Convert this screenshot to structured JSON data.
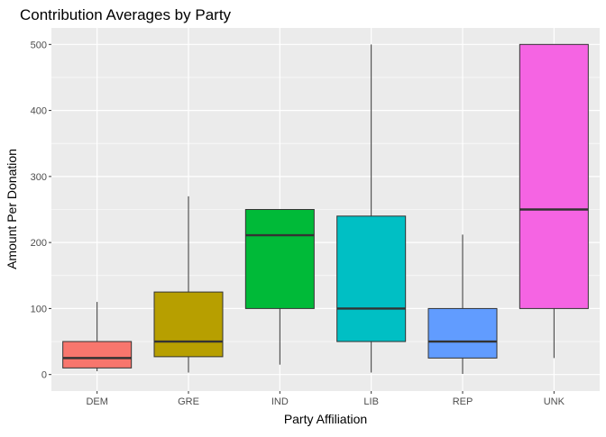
{
  "chart_data": {
    "type": "boxplot",
    "title": "Contribution Averages by Party",
    "xlabel": "Party Affiliation",
    "ylabel": "Amount Per Donation",
    "ylim": [
      -25,
      525
    ],
    "yticks": [
      0,
      100,
      200,
      300,
      400,
      500
    ],
    "grid": true,
    "legend": "none",
    "categories": [
      "DEM",
      "GRE",
      "IND",
      "LIB",
      "REP",
      "UNK"
    ],
    "boxes": [
      {
        "category": "DEM",
        "min": 5,
        "q1": 10,
        "median": 25,
        "q3": 50,
        "max": 110,
        "color": "#F8766D"
      },
      {
        "category": "GRE",
        "min": 3,
        "q1": 27,
        "median": 50,
        "q3": 125,
        "max": 270,
        "color": "#B79F00"
      },
      {
        "category": "IND",
        "min": 15,
        "q1": 100,
        "median": 211,
        "q3": 250,
        "max": 250,
        "color": "#00BA38"
      },
      {
        "category": "LIB",
        "min": 3,
        "q1": 50,
        "median": 100,
        "q3": 240,
        "max": 500,
        "color": "#00BFC4"
      },
      {
        "category": "REP",
        "min": 1,
        "q1": 25,
        "median": 50,
        "q3": 100,
        "max": 212,
        "color": "#619CFF"
      },
      {
        "category": "UNK",
        "min": 25,
        "q1": 100,
        "median": 250,
        "q3": 500,
        "max": 500,
        "color": "#F564E3"
      }
    ]
  }
}
